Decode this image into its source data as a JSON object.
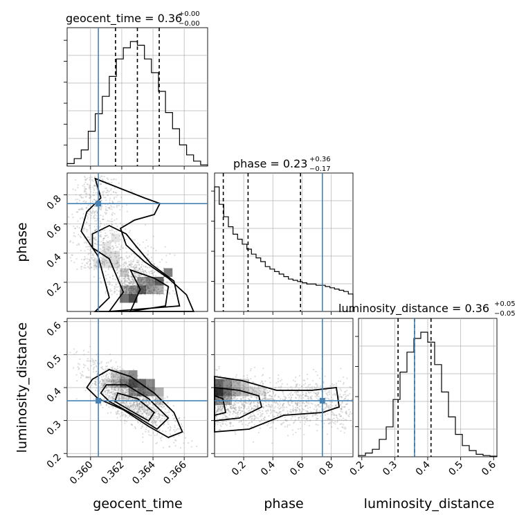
{
  "chart_data": {
    "type": "corner",
    "parameters": [
      {
        "name": "geocent_time",
        "xlabel": "geocent_time",
        "range": [
          0.3585,
          0.3675
        ],
        "ticks": [
          "0.360",
          "0.362",
          "0.364",
          "0.366"
        ],
        "tick_values": [
          0.36,
          0.362,
          0.364,
          0.366
        ],
        "truth": 0.3605,
        "quantiles": [
          0.3616,
          0.363,
          0.3644
        ]
      },
      {
        "name": "phase",
        "xlabel": "phase",
        "ylabel": "phase",
        "range": [
          0.0,
          0.95
        ],
        "ticks": [
          "0.2",
          "0.4",
          "0.6",
          "0.8"
        ],
        "tick_values": [
          0.2,
          0.4,
          0.6,
          0.8
        ],
        "truth": 0.74,
        "quantiles": [
          0.06,
          0.23,
          0.59
        ]
      },
      {
        "name": "luminosity_distance",
        "xlabel": "luminosity_distance",
        "ylabel": "luminosity_distance",
        "range": [
          0.19,
          0.61
        ],
        "ticks": [
          "0.2",
          "0.3",
          "0.4",
          "0.5",
          "0.6"
        ],
        "tick_values": [
          0.2,
          0.3,
          0.4,
          0.5,
          0.6
        ],
        "truth": 0.36,
        "quantiles": [
          0.31,
          0.36,
          0.41
        ]
      }
    ],
    "titles": {
      "geocent_time": {
        "label": "geocent_time = 0.36",
        "plus": "+0.00",
        "minus": "−0.00"
      },
      "phase": {
        "label": "phase = 0.23",
        "plus": "+0.36",
        "minus": "−0.17"
      },
      "luminosity_distance": {
        "label": "luminosity_distance = 0.36",
        "plus": "+0.05",
        "minus": "−0.05"
      }
    },
    "histograms": {
      "geocent_time": [
        0.02,
        0.06,
        0.13,
        0.28,
        0.42,
        0.56,
        0.72,
        0.86,
        0.95,
        1.0,
        0.97,
        0.86,
        0.75,
        0.6,
        0.43,
        0.3,
        0.17,
        0.09,
        0.04,
        0.01
      ],
      "phase": [
        1.0,
        0.86,
        0.76,
        0.68,
        0.62,
        0.58,
        0.54,
        0.5,
        0.46,
        0.43,
        0.4,
        0.36,
        0.34,
        0.32,
        0.3,
        0.28,
        0.26,
        0.25,
        0.24,
        0.23,
        0.22,
        0.22,
        0.21,
        0.21,
        0.2,
        0.19,
        0.18,
        0.17,
        0.16,
        0.14
      ],
      "luminosity_distance": [
        0.01,
        0.03,
        0.06,
        0.14,
        0.24,
        0.46,
        0.68,
        0.84,
        0.95,
        1.0,
        0.92,
        0.74,
        0.52,
        0.32,
        0.18,
        0.09,
        0.05,
        0.02,
        0.01,
        0.005
      ]
    },
    "grid": true,
    "truth_color": "#4682b4"
  }
}
